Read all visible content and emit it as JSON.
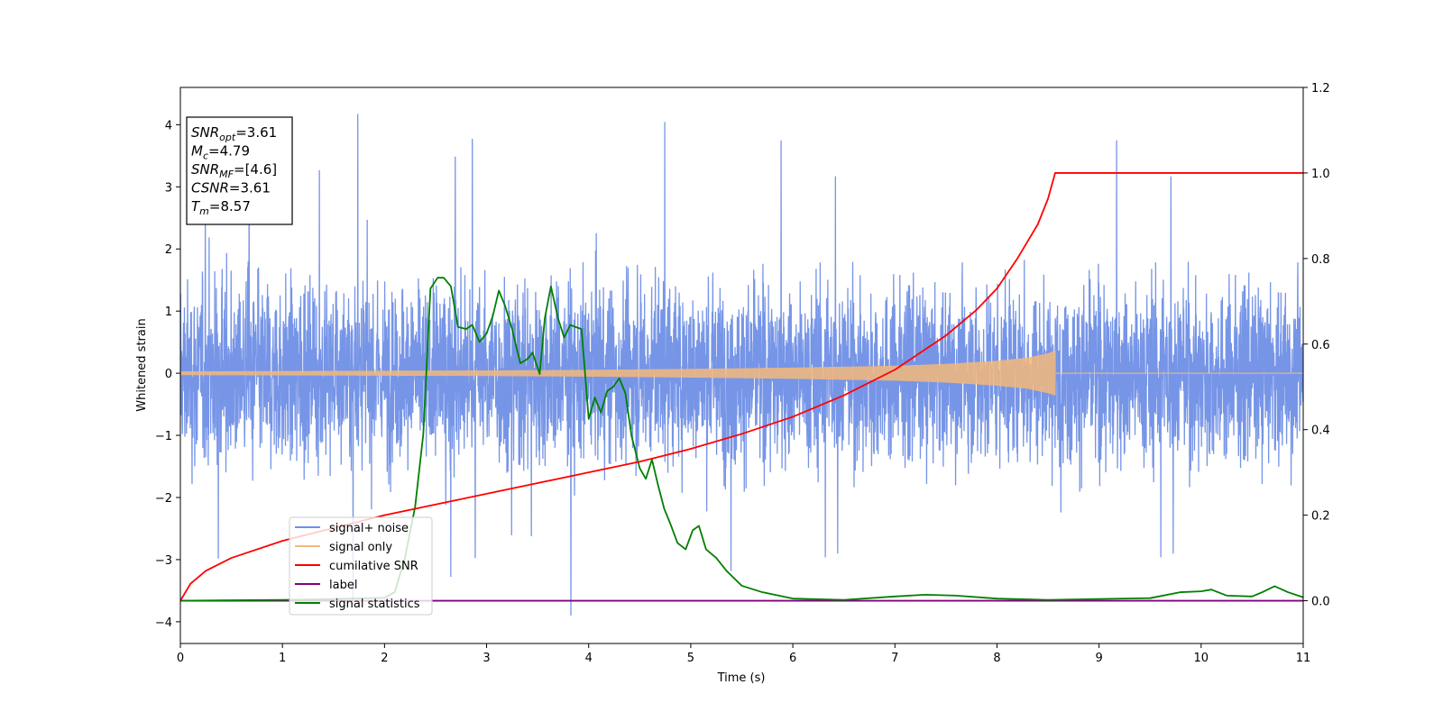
{
  "chart_data": {
    "type": "line",
    "xlabel": "Time (s)",
    "ylabel": "Whitened strain",
    "xlim": [
      0,
      11
    ],
    "ylim": [
      -4.35,
      4.6
    ],
    "ylim_right": [
      -0.1,
      1.2
    ],
    "x_ticks": [
      0,
      1,
      2,
      3,
      4,
      5,
      6,
      7,
      8,
      9,
      10,
      11
    ],
    "y_ticks": [
      -4,
      -3,
      -2,
      -1,
      0,
      1,
      2,
      3,
      4
    ],
    "y_ticks_right": [
      0.0,
      0.2,
      0.4,
      0.6,
      0.8,
      1.0,
      1.2
    ],
    "x_tick_labels": [
      "0",
      "1",
      "2",
      "3",
      "4",
      "5",
      "6",
      "7",
      "8",
      "9",
      "10",
      "11"
    ],
    "y_tick_labels": [
      "−4",
      "−3",
      "−2",
      "−1",
      "0",
      "1",
      "2",
      "3",
      "4"
    ],
    "y_tick_labels_right": [
      "0.0",
      "0.2",
      "0.4",
      "0.6",
      "0.8",
      "1.0",
      "1.2"
    ],
    "grid": false,
    "legend_position": "lower-left",
    "info_box": [
      {
        "main": "SNR",
        "sub": "opt",
        "value": "=3.61"
      },
      {
        "main": "M",
        "sub": "c",
        "value": "=4.79"
      },
      {
        "main": "SNR",
        "sub": "MF",
        "value": "=[4.6]"
      },
      {
        "main": "CSNR",
        "sub": "",
        "value": "=3.61"
      },
      {
        "main": "T",
        "sub": "m",
        "value": "=8.57"
      }
    ],
    "series": [
      {
        "name": "signal+ noise",
        "axis": "left",
        "color": "#6f8fe6",
        "style": "dense-noise",
        "x_range": [
          0,
          11
        ],
        "typical_amplitude": [
          -1.6,
          1.6
        ],
        "max": 4.2,
        "min": -3.9
      },
      {
        "name": "signal only",
        "axis": "left",
        "color": "#f5b97a",
        "style": "chirp",
        "x_range": [
          0,
          8.57
        ],
        "envelope": [
          [
            0,
            0.03
          ],
          [
            1,
            0.035
          ],
          [
            2,
            0.04
          ],
          [
            3,
            0.045
          ],
          [
            4,
            0.055
          ],
          [
            5,
            0.07
          ],
          [
            6,
            0.09
          ],
          [
            7,
            0.12
          ],
          [
            7.5,
            0.15
          ],
          [
            8,
            0.2
          ],
          [
            8.3,
            0.25
          ],
          [
            8.5,
            0.32
          ],
          [
            8.57,
            0.36
          ]
        ]
      },
      {
        "name": "cumilative SNR",
        "axis": "right",
        "color": "#ff0000",
        "x": [
          0,
          0.1,
          0.25,
          0.5,
          1,
          1.5,
          2,
          2.5,
          3,
          3.5,
          4,
          4.5,
          5,
          5.5,
          6,
          6.5,
          7,
          7.5,
          7.8,
          8.0,
          8.2,
          8.4,
          8.5,
          8.57,
          11
        ],
        "y": [
          0.0,
          0.04,
          0.07,
          0.1,
          0.14,
          0.17,
          0.2,
          0.225,
          0.25,
          0.275,
          0.3,
          0.325,
          0.355,
          0.39,
          0.43,
          0.48,
          0.54,
          0.62,
          0.68,
          0.73,
          0.8,
          0.88,
          0.94,
          1.0,
          1.0
        ]
      },
      {
        "name": "label",
        "axis": "right",
        "color": "#800080",
        "x": [
          0,
          11
        ],
        "y": [
          0.0,
          0.0
        ]
      },
      {
        "name": "signal statistics",
        "axis": "right",
        "color": "#008000",
        "x": [
          0,
          0.5,
          1,
          1.5,
          2,
          2.1,
          2.2,
          2.3,
          2.38,
          2.45,
          2.52,
          2.58,
          2.65,
          2.72,
          2.8,
          2.86,
          2.93,
          3.0,
          3.06,
          3.12,
          3.18,
          3.25,
          3.33,
          3.4,
          3.45,
          3.52,
          3.57,
          3.63,
          3.7,
          3.76,
          3.82,
          3.87,
          3.93,
          4.0,
          4.06,
          4.12,
          4.18,
          4.24,
          4.3,
          4.36,
          4.42,
          4.5,
          4.56,
          4.62,
          4.68,
          4.74,
          4.8,
          4.87,
          4.95,
          5.02,
          5.08,
          5.15,
          5.25,
          5.35,
          5.5,
          5.7,
          6.0,
          6.5,
          7.0,
          7.3,
          7.6,
          8.0,
          8.5,
          9.0,
          9.5,
          9.8,
          10.0,
          10.1,
          10.25,
          10.5,
          10.6,
          10.72,
          10.85,
          11.0
        ],
        "y": [
          0.0,
          0.001,
          0.002,
          0.004,
          0.007,
          0.02,
          0.1,
          0.22,
          0.39,
          0.73,
          0.755,
          0.755,
          0.735,
          0.64,
          0.635,
          0.645,
          0.605,
          0.625,
          0.665,
          0.725,
          0.69,
          0.635,
          0.555,
          0.565,
          0.58,
          0.53,
          0.66,
          0.735,
          0.66,
          0.615,
          0.645,
          0.64,
          0.635,
          0.425,
          0.475,
          0.44,
          0.49,
          0.5,
          0.52,
          0.485,
          0.385,
          0.31,
          0.285,
          0.33,
          0.27,
          0.215,
          0.18,
          0.135,
          0.12,
          0.165,
          0.175,
          0.12,
          0.1,
          0.07,
          0.035,
          0.02,
          0.005,
          0.002,
          0.01,
          0.014,
          0.012,
          0.005,
          0.002,
          0.004,
          0.006,
          0.02,
          0.022,
          0.026,
          0.012,
          0.01,
          0.02,
          0.034,
          0.02,
          0.008
        ]
      }
    ]
  }
}
